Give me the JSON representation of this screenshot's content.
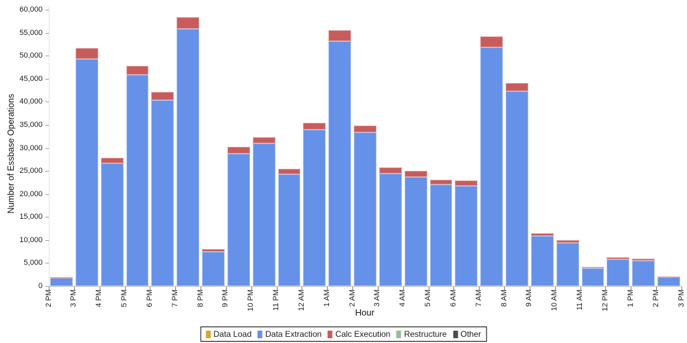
{
  "chart_data": {
    "type": "bar",
    "stacked": true,
    "title": "",
    "xlabel": "Hour",
    "ylabel": "Number of Essbase Operations",
    "ylim": [
      0,
      60000
    ],
    "ytick_step": 5000,
    "grid": false,
    "legend_position": "bottom-center",
    "boundary_tick_labels": [
      "2 PM",
      "3 PM",
      "4 PM",
      "5 PM",
      "6 PM",
      "7 PM",
      "8 PM",
      "9 PM",
      "10 PM",
      "11 PM",
      "12 AM",
      "1 AM",
      "2 AM",
      "3 AM",
      "4 AM",
      "5 AM",
      "6 AM",
      "7 AM",
      "8 AM",
      "9 AM",
      "10 AM",
      "11 AM",
      "12 PM",
      "1 PM",
      "2 PM",
      "3 PM"
    ],
    "categories": [
      "2 PM",
      "3 PM",
      "4 PM",
      "5 PM",
      "6 PM",
      "7 PM",
      "8 PM",
      "9 PM",
      "10 PM",
      "11 PM",
      "12 AM",
      "1 AM",
      "2 AM",
      "3 AM",
      "4 AM",
      "5 AM",
      "6 AM",
      "7 AM",
      "8 AM",
      "9 AM",
      "10 AM",
      "11 AM",
      "12 PM",
      "1 PM",
      "2 PM"
    ],
    "series": [
      {
        "name": "Data Load",
        "color": "#D9A62E",
        "values": [
          0,
          0,
          0,
          0,
          0,
          0,
          0,
          0,
          0,
          0,
          0,
          0,
          0,
          0,
          0,
          0,
          0,
          0,
          0,
          0,
          0,
          0,
          0,
          0,
          0
        ]
      },
      {
        "name": "Data Extraction",
        "color": "#6591E8",
        "values": [
          1900,
          49300,
          26700,
          45800,
          40300,
          55800,
          7400,
          28700,
          31000,
          24300,
          33900,
          53100,
          33400,
          24400,
          23700,
          22100,
          21800,
          51800,
          42300,
          10900,
          9400,
          3900,
          5800,
          5500,
          2000
        ]
      },
      {
        "name": "Calc Execution",
        "color": "#C85C5C",
        "values": [
          100,
          2400,
          1100,
          2000,
          1800,
          2500,
          600,
          1500,
          1300,
          1100,
          1500,
          2400,
          1500,
          1400,
          1300,
          1000,
          1100,
          2400,
          1700,
          500,
          600,
          300,
          500,
          400,
          150
        ]
      },
      {
        "name": "Restructure",
        "color": "#94BE94",
        "values": [
          0,
          0,
          0,
          0,
          0,
          0,
          0,
          0,
          0,
          0,
          0,
          0,
          0,
          0,
          0,
          0,
          0,
          0,
          0,
          0,
          0,
          0,
          0,
          0,
          0
        ]
      },
      {
        "name": "Other",
        "color": "#4D4D4D",
        "values": [
          0,
          0,
          0,
          0,
          0,
          0,
          0,
          0,
          0,
          0,
          0,
          0,
          0,
          0,
          0,
          0,
          0,
          0,
          0,
          0,
          0,
          0,
          0,
          0,
          0
        ]
      }
    ]
  }
}
